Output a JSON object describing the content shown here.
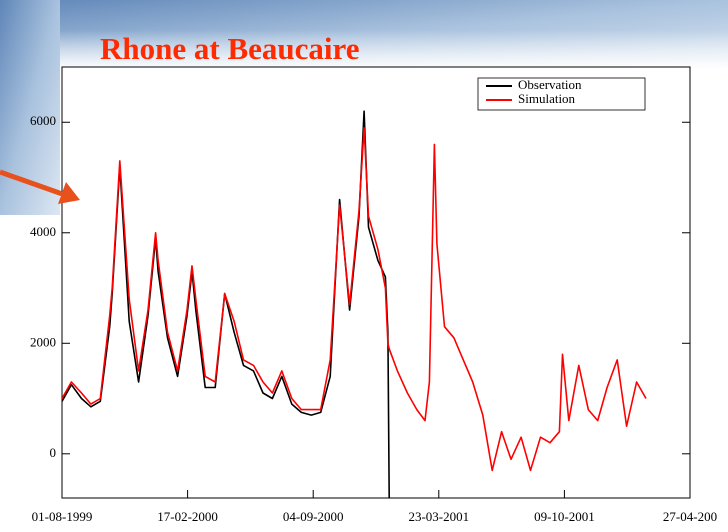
{
  "chart_data": {
    "type": "line",
    "title": "Rhone at Beaucaire",
    "x": [
      "1999-08-01",
      "1999-08-16",
      "1999-09-01",
      "1999-09-16",
      "1999-10-01",
      "1999-10-16",
      "1999-10-20",
      "1999-11-01",
      "1999-11-16",
      "1999-12-01",
      "1999-12-16",
      "1999-12-28",
      "2000-01-01",
      "2000-01-16",
      "2000-02-01",
      "2000-02-16",
      "2000-02-24",
      "2000-03-01",
      "2000-03-16",
      "2000-04-01",
      "2000-04-16",
      "2000-05-01",
      "2000-05-16",
      "2000-06-01",
      "2000-06-16",
      "2000-07-01",
      "2000-07-16",
      "2000-08-01",
      "2000-08-16",
      "2000-09-01",
      "2000-09-16",
      "2000-10-01",
      "2000-10-16",
      "2000-11-01",
      "2000-11-16",
      "2000-11-24",
      "2000-12-01",
      "2000-12-16",
      "2000-12-28",
      "2001-01-01",
      "2001-01-03",
      "2001-01-16",
      "2001-02-01",
      "2001-02-16",
      "2001-03-01",
      "2001-03-08",
      "2001-03-16",
      "2001-03-20",
      "2001-04-01",
      "2001-04-16",
      "2001-05-01",
      "2001-05-16",
      "2001-06-01",
      "2001-06-16",
      "2001-07-01",
      "2001-07-16",
      "2001-08-01",
      "2001-08-16",
      "2001-09-01",
      "2001-09-16",
      "2001-10-01",
      "2001-10-06",
      "2001-10-16",
      "2001-11-01",
      "2001-11-16",
      "2001-12-01",
      "2001-12-16",
      "2002-01-01",
      "2002-01-16",
      "2002-02-01",
      "2002-02-16"
    ],
    "series": [
      {
        "name": "Observation",
        "color": "#000000",
        "values": [
          950,
          1250,
          1000,
          850,
          950,
          2300,
          2900,
          5200,
          2400,
          1300,
          2500,
          3900,
          3300,
          2100,
          1400,
          2500,
          3300,
          2600,
          1200,
          1200,
          2900,
          2200,
          1600,
          1500,
          1100,
          1000,
          1400,
          900,
          750,
          700,
          750,
          1400,
          4600,
          2600,
          4300,
          6200,
          4100,
          3500,
          3200,
          2200,
          -800,
          null,
          null,
          null,
          null,
          null,
          null,
          null,
          null,
          null,
          null,
          null,
          null,
          null,
          null,
          null,
          null,
          null,
          null,
          null,
          null,
          null,
          null,
          null,
          null,
          null,
          null,
          null,
          null,
          null,
          null
        ]
      },
      {
        "name": "Simulation",
        "color": "#ff0000",
        "values": [
          1000,
          1300,
          1100,
          900,
          1000,
          2500,
          3000,
          5300,
          2800,
          1500,
          2600,
          4000,
          3500,
          2200,
          1500,
          2600,
          3400,
          2800,
          1400,
          1300,
          2900,
          2400,
          1700,
          1600,
          1300,
          1100,
          1500,
          1000,
          800,
          800,
          800,
          1700,
          4500,
          2700,
          4400,
          5900,
          4300,
          3700,
          3000,
          2000,
          1900,
          1500,
          1100,
          800,
          600,
          1300,
          5600,
          3800,
          2300,
          2100,
          1700,
          1300,
          700,
          -300,
          400,
          -100,
          300,
          -300,
          300,
          200,
          400,
          1800,
          600,
          1600,
          800,
          600,
          1200,
          1700,
          500,
          1300,
          1000
        ]
      }
    ],
    "xlim": [
      "1999-08-01",
      "2002-04-27"
    ],
    "xticks": [
      {
        "value": "1999-08-01",
        "label": "01-08-1999"
      },
      {
        "value": "2000-02-17",
        "label": "17-02-2000"
      },
      {
        "value": "2000-09-04",
        "label": "04-09-2000"
      },
      {
        "value": "2001-03-23",
        "label": "23-03-2001"
      },
      {
        "value": "2001-10-09",
        "label": "09-10-2001"
      },
      {
        "value": "2002-04-27",
        "label": "27-04-200"
      }
    ],
    "ylim": [
      -800,
      7000
    ],
    "yticks": [
      0,
      2000,
      4000,
      6000
    ],
    "legend": "upper right"
  }
}
